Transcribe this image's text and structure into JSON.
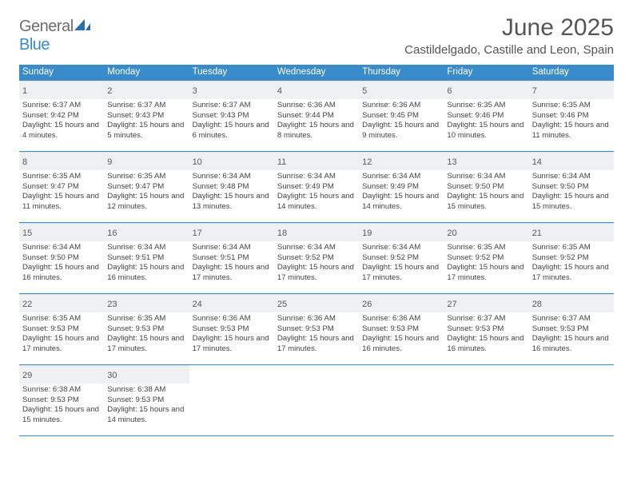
{
  "brand": {
    "part1": "General",
    "part2": "Blue"
  },
  "title": "June 2025",
  "location": "Castildelgado, Castille and Leon, Spain",
  "colors": {
    "header_bg": "#3a8bc9",
    "header_text": "#ffffff",
    "daynum_bg": "#eef0f2",
    "row_border": "#3a8bc9",
    "text": "#444444",
    "page_bg": "#ffffff"
  },
  "typography": {
    "title_fontsize": 30,
    "location_fontsize": 15,
    "weekday_fontsize": 11.5,
    "daynum_fontsize": 11,
    "body_fontsize": 9.6
  },
  "weekdays": [
    "Sunday",
    "Monday",
    "Tuesday",
    "Wednesday",
    "Thursday",
    "Friday",
    "Saturday"
  ],
  "weeks": [
    [
      {
        "n": "1",
        "sr": "6:37 AM",
        "ss": "9:42 PM",
        "dl": "15 hours and 4 minutes."
      },
      {
        "n": "2",
        "sr": "6:37 AM",
        "ss": "9:43 PM",
        "dl": "15 hours and 5 minutes."
      },
      {
        "n": "3",
        "sr": "6:37 AM",
        "ss": "9:43 PM",
        "dl": "15 hours and 6 minutes."
      },
      {
        "n": "4",
        "sr": "6:36 AM",
        "ss": "9:44 PM",
        "dl": "15 hours and 8 minutes."
      },
      {
        "n": "5",
        "sr": "6:36 AM",
        "ss": "9:45 PM",
        "dl": "15 hours and 9 minutes."
      },
      {
        "n": "6",
        "sr": "6:35 AM",
        "ss": "9:46 PM",
        "dl": "15 hours and 10 minutes."
      },
      {
        "n": "7",
        "sr": "6:35 AM",
        "ss": "9:46 PM",
        "dl": "15 hours and 11 minutes."
      }
    ],
    [
      {
        "n": "8",
        "sr": "6:35 AM",
        "ss": "9:47 PM",
        "dl": "15 hours and 11 minutes."
      },
      {
        "n": "9",
        "sr": "6:35 AM",
        "ss": "9:47 PM",
        "dl": "15 hours and 12 minutes."
      },
      {
        "n": "10",
        "sr": "6:34 AM",
        "ss": "9:48 PM",
        "dl": "15 hours and 13 minutes."
      },
      {
        "n": "11",
        "sr": "6:34 AM",
        "ss": "9:49 PM",
        "dl": "15 hours and 14 minutes."
      },
      {
        "n": "12",
        "sr": "6:34 AM",
        "ss": "9:49 PM",
        "dl": "15 hours and 14 minutes."
      },
      {
        "n": "13",
        "sr": "6:34 AM",
        "ss": "9:50 PM",
        "dl": "15 hours and 15 minutes."
      },
      {
        "n": "14",
        "sr": "6:34 AM",
        "ss": "9:50 PM",
        "dl": "15 hours and 15 minutes."
      }
    ],
    [
      {
        "n": "15",
        "sr": "6:34 AM",
        "ss": "9:50 PM",
        "dl": "15 hours and 16 minutes."
      },
      {
        "n": "16",
        "sr": "6:34 AM",
        "ss": "9:51 PM",
        "dl": "15 hours and 16 minutes."
      },
      {
        "n": "17",
        "sr": "6:34 AM",
        "ss": "9:51 PM",
        "dl": "15 hours and 17 minutes."
      },
      {
        "n": "18",
        "sr": "6:34 AM",
        "ss": "9:52 PM",
        "dl": "15 hours and 17 minutes."
      },
      {
        "n": "19",
        "sr": "6:34 AM",
        "ss": "9:52 PM",
        "dl": "15 hours and 17 minutes."
      },
      {
        "n": "20",
        "sr": "6:35 AM",
        "ss": "9:52 PM",
        "dl": "15 hours and 17 minutes."
      },
      {
        "n": "21",
        "sr": "6:35 AM",
        "ss": "9:52 PM",
        "dl": "15 hours and 17 minutes."
      }
    ],
    [
      {
        "n": "22",
        "sr": "6:35 AM",
        "ss": "9:53 PM",
        "dl": "15 hours and 17 minutes."
      },
      {
        "n": "23",
        "sr": "6:35 AM",
        "ss": "9:53 PM",
        "dl": "15 hours and 17 minutes."
      },
      {
        "n": "24",
        "sr": "6:36 AM",
        "ss": "9:53 PM",
        "dl": "15 hours and 17 minutes."
      },
      {
        "n": "25",
        "sr": "6:36 AM",
        "ss": "9:53 PM",
        "dl": "15 hours and 17 minutes."
      },
      {
        "n": "26",
        "sr": "6:36 AM",
        "ss": "9:53 PM",
        "dl": "15 hours and 16 minutes."
      },
      {
        "n": "27",
        "sr": "6:37 AM",
        "ss": "9:53 PM",
        "dl": "15 hours and 16 minutes."
      },
      {
        "n": "28",
        "sr": "6:37 AM",
        "ss": "9:53 PM",
        "dl": "15 hours and 16 minutes."
      }
    ],
    [
      {
        "n": "29",
        "sr": "6:38 AM",
        "ss": "9:53 PM",
        "dl": "15 hours and 15 minutes."
      },
      {
        "n": "30",
        "sr": "6:38 AM",
        "ss": "9:53 PM",
        "dl": "15 hours and 14 minutes."
      },
      null,
      null,
      null,
      null,
      null
    ]
  ],
  "labels": {
    "sunrise": "Sunrise:",
    "sunset": "Sunset:",
    "daylight": "Daylight:"
  }
}
